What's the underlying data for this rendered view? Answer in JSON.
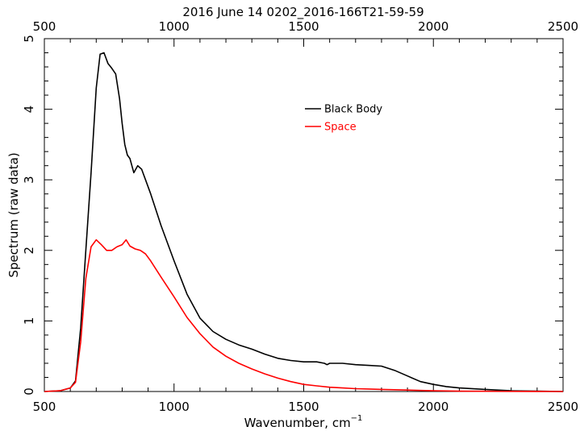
{
  "chart_data": {
    "type": "line",
    "title": "2016 June 14 0202_2016-166T21-59-59",
    "xlabel": "Wavenumber, cm",
    "xlabel_superscript": "−1",
    "ylabel": "Spectrum (raw data)",
    "xlim": [
      500,
      2500
    ],
    "ylim": [
      0,
      5
    ],
    "x_ticks": [
      500,
      1000,
      1500,
      2000,
      2500
    ],
    "y_ticks": [
      0,
      1,
      2,
      3,
      4,
      5
    ],
    "grid": false,
    "legend_position": "upper-right",
    "colors": {
      "black_body": "#000000",
      "space": "#ff0000"
    },
    "series": [
      {
        "name": "Black Body",
        "color": "#000000",
        "x": [
          500,
          560,
          600,
          620,
          640,
          660,
          680,
          700,
          715,
          730,
          745,
          760,
          775,
          790,
          800,
          810,
          820,
          830,
          845,
          860,
          875,
          890,
          910,
          950,
          1000,
          1050,
          1100,
          1150,
          1200,
          1250,
          1300,
          1350,
          1400,
          1450,
          1500,
          1550,
          1580,
          1590,
          1600,
          1650,
          1700,
          1750,
          1800,
          1850,
          1900,
          1950,
          2000,
          2050,
          2100,
          2200,
          2300,
          2400,
          2500
        ],
        "y": [
          0,
          0.01,
          0.05,
          0.15,
          0.9,
          2.0,
          3.1,
          4.3,
          4.78,
          4.8,
          4.65,
          4.58,
          4.5,
          4.15,
          3.8,
          3.5,
          3.35,
          3.3,
          3.1,
          3.2,
          3.15,
          3.0,
          2.8,
          2.35,
          1.85,
          1.38,
          1.04,
          0.85,
          0.74,
          0.66,
          0.6,
          0.53,
          0.47,
          0.44,
          0.42,
          0.42,
          0.4,
          0.38,
          0.4,
          0.4,
          0.38,
          0.37,
          0.36,
          0.3,
          0.22,
          0.14,
          0.1,
          0.07,
          0.05,
          0.03,
          0.01,
          0.005,
          0
        ]
      },
      {
        "name": "Space",
        "color": "#ff0000",
        "x": [
          500,
          560,
          600,
          620,
          640,
          660,
          680,
          700,
          720,
          740,
          760,
          780,
          800,
          815,
          830,
          850,
          870,
          890,
          910,
          950,
          1000,
          1050,
          1100,
          1150,
          1200,
          1250,
          1300,
          1350,
          1400,
          1450,
          1500,
          1550,
          1600,
          1650,
          1700,
          1750,
          1800,
          1850,
          1900,
          2000,
          2100,
          2200,
          2300,
          2400,
          2500
        ],
        "y": [
          0,
          0.01,
          0.05,
          0.13,
          0.7,
          1.6,
          2.05,
          2.15,
          2.08,
          2.0,
          2.0,
          2.05,
          2.08,
          2.15,
          2.06,
          2.02,
          2.0,
          1.95,
          1.85,
          1.62,
          1.34,
          1.05,
          0.82,
          0.63,
          0.5,
          0.4,
          0.32,
          0.25,
          0.19,
          0.14,
          0.1,
          0.08,
          0.06,
          0.05,
          0.04,
          0.035,
          0.03,
          0.025,
          0.02,
          0.01,
          0.005,
          0.003,
          0.002,
          0.001,
          0
        ]
      }
    ]
  }
}
